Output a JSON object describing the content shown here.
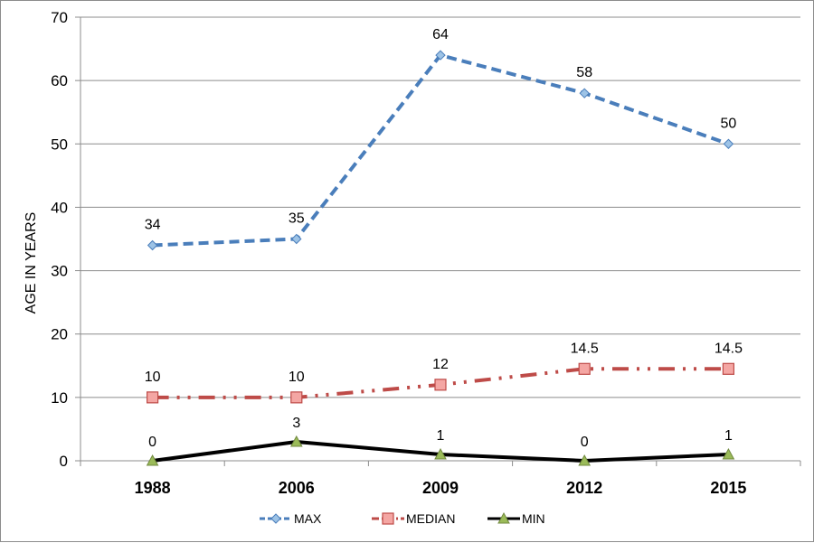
{
  "chart_data": {
    "type": "line",
    "title": "",
    "xlabel": "",
    "ylabel": "AGE IN YEARS",
    "categories": [
      "1988",
      "2006",
      "2009",
      "2012",
      "2015"
    ],
    "ylim": [
      0,
      70
    ],
    "yticks": [
      0,
      10,
      20,
      30,
      40,
      50,
      60,
      70
    ],
    "grid": true,
    "legend_position": "bottom",
    "series": [
      {
        "name": "MAX",
        "values": [
          34,
          35,
          64,
          58,
          50
        ],
        "labels": [
          "34",
          "35",
          "64",
          "58",
          "50"
        ],
        "color": "#4a7ebb",
        "line_style": "dashed",
        "marker": "diamond"
      },
      {
        "name": "MEDIAN",
        "values": [
          10,
          10,
          12,
          14.5,
          14.5
        ],
        "labels": [
          "10",
          "10",
          "12",
          "14.5",
          "14.5"
        ],
        "color": "#be4b48",
        "line_style": "dash-dot-dot",
        "marker": "square"
      },
      {
        "name": "MIN",
        "values": [
          0,
          3,
          1,
          0,
          1
        ],
        "labels": [
          "0",
          "3",
          "1",
          "0",
          "1"
        ],
        "color": "#000000",
        "line_style": "solid",
        "marker": "triangle"
      }
    ]
  }
}
